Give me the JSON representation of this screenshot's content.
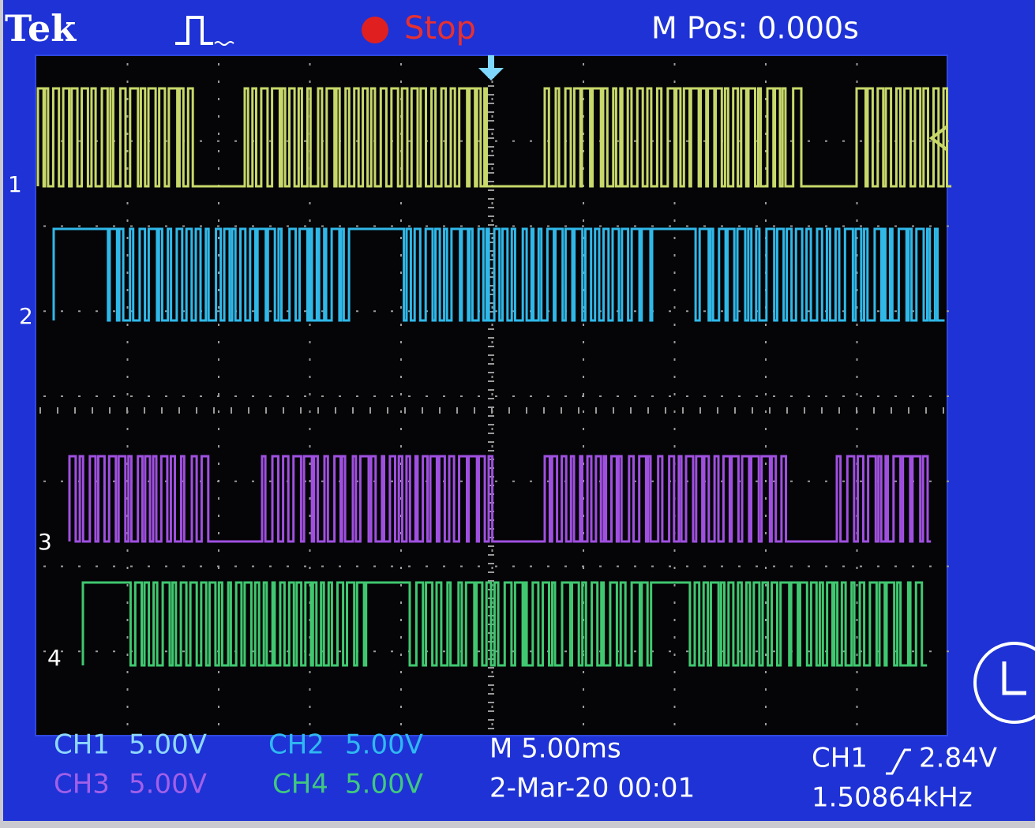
{
  "header": {
    "brand": "Tek",
    "status": "Stop",
    "position": "M Pos: 0.000s"
  },
  "channels": [
    {
      "marker": "1",
      "label": "CH1",
      "scale": "5.00V"
    },
    {
      "marker": "2",
      "label": "CH2",
      "scale": "5.00V"
    },
    {
      "marker": "3",
      "label": "CH3",
      "scale": "5.00V"
    },
    {
      "marker": "4",
      "label": "CH4",
      "scale": "5.00V"
    }
  ],
  "timebase": "M 5.00ms",
  "timestamp": "2-Mar-20 00:01",
  "trigger": {
    "source": "CH1",
    "level": "2.84V",
    "frequency": "1.50864kHz"
  }
}
